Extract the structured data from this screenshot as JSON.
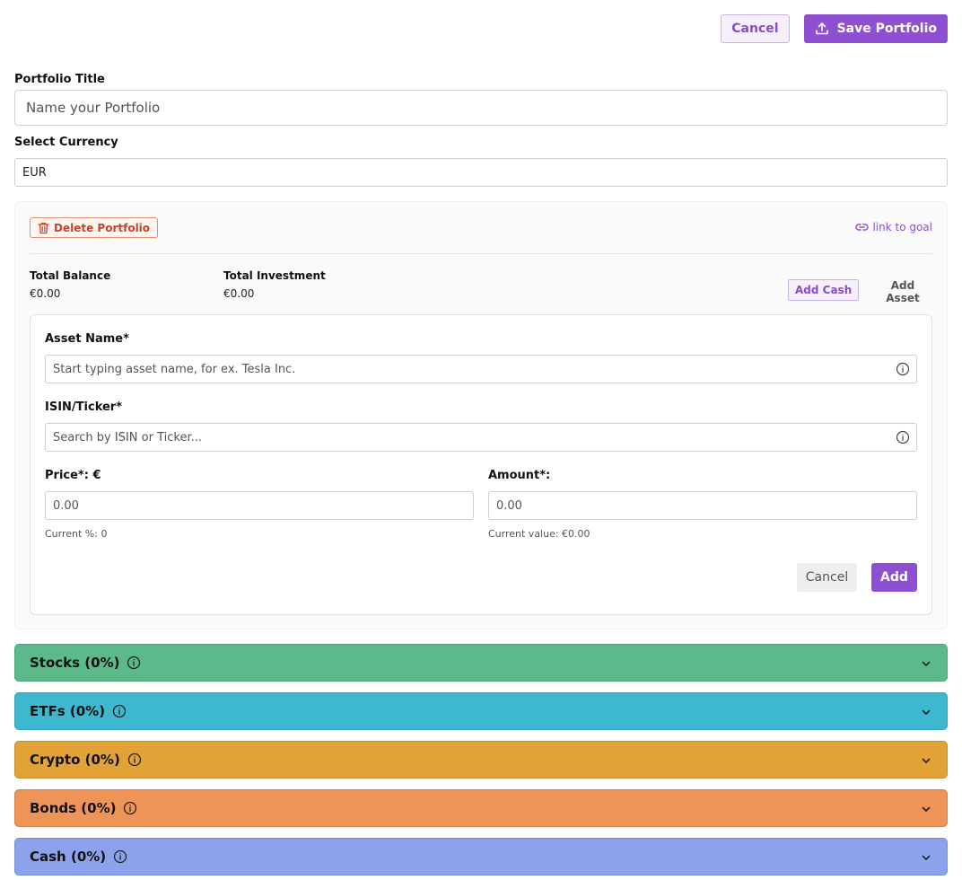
{
  "toolbar": {
    "cancel_label": "Cancel",
    "save_label": "Save Portfolio"
  },
  "form": {
    "title_label": "Portfolio Title",
    "title_placeholder": "Name your Portfolio",
    "currency_label": "Select Currency",
    "currency_value": "EUR"
  },
  "panel": {
    "delete_label": "Delete Portfolio",
    "link_goal_label": "link to goal",
    "total_balance_label": "Total Balance",
    "total_balance_value": "€0.00",
    "total_investment_label": "Total Investment",
    "total_investment_value": "€0.00",
    "add_cash_label": "Add Cash",
    "add_asset_label": "Add Asset"
  },
  "asset_form": {
    "asset_name_label": "Asset Name*",
    "asset_name_placeholder": "Start typing asset name, for ex. Tesla Inc.",
    "isin_label": "ISIN/Ticker*",
    "isin_placeholder": "Search by ISIN or Ticker...",
    "price_label": "Price*: €",
    "price_placeholder": "0.00",
    "price_hint": "Current %: 0",
    "amount_label": "Amount*:",
    "amount_placeholder": "0.00",
    "amount_hint": "Current value: €0.00",
    "cancel_label": "Cancel",
    "add_label": "Add"
  },
  "categories": [
    {
      "label": "Stocks (0%)",
      "color": "#5cba8a"
    },
    {
      "label": "ETFs (0%)",
      "color": "#3eb8cf"
    },
    {
      "label": "Crypto (0%)",
      "color": "#e2a236"
    },
    {
      "label": "Bonds (0%)",
      "color": "#ee9457"
    },
    {
      "label": "Cash (0%)",
      "color": "#8da2ec"
    }
  ],
  "colors": {
    "accent": "#8e4fd0",
    "danger": "#c0462a"
  }
}
